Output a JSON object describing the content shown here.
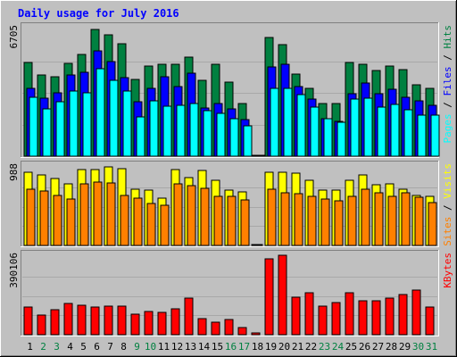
{
  "chart_data": {
    "type": "bar",
    "title": "Daily usage for July 2016",
    "categories": [
      "1",
      "2",
      "3",
      "4",
      "5",
      "6",
      "7",
      "8",
      "9",
      "10",
      "11",
      "12",
      "13",
      "14",
      "15",
      "16",
      "17",
      "18",
      "19",
      "20",
      "21",
      "22",
      "23",
      "24",
      "25",
      "26",
      "27",
      "28",
      "29",
      "30",
      "31"
    ],
    "weekend_days": [
      "2",
      "3",
      "9",
      "10",
      "16",
      "17",
      "23",
      "24",
      "30",
      "31"
    ],
    "colors": {
      "hits": "#008040",
      "files": "#0000ff",
      "pages": "#00ffff",
      "visits": "#ffff00",
      "sites": "#ff8000",
      "kbytes": "#ff0000",
      "title": "#0000ff",
      "weekday_label": "#000000",
      "weekend_label": "#008040"
    },
    "panels": [
      {
        "id": "usage",
        "axis_max_label": "6705",
        "ylim": [
          0,
          6705
        ],
        "legend": [
          {
            "name": "Pages",
            "color": "#00ffff"
          },
          {
            "name": "Files",
            "color": "#0000ff"
          },
          {
            "name": "Hits",
            "color": "#008040"
          }
        ],
        "series": [
          {
            "name": "Hits",
            "color": "#008040",
            "values": [
              4950,
              4290,
              4220,
              4920,
              5360,
              6700,
              6440,
              5960,
              4040,
              4750,
              4860,
              4840,
              5220,
              4020,
              4850,
              3920,
              2780,
              0,
              6270,
              5920,
              4330,
              3600,
              2770,
              2770,
              4960,
              4860,
              4540,
              4760,
              4580,
              3790,
              3610
            ]
          },
          {
            "name": "Files",
            "color": "#0000ff",
            "values": [
              3600,
              3060,
              3350,
              4310,
              4440,
              5550,
              5020,
              4160,
              2900,
              3590,
              4190,
              3690,
              4380,
              2560,
              2790,
              2510,
              1920,
              0,
              4730,
              4840,
              3690,
              3040,
              1980,
              1860,
              3300,
              3850,
              3310,
              3530,
              3120,
              2910,
              2680
            ]
          },
          {
            "name": "Pages",
            "color": "#00ffff",
            "values": [
              3110,
              2490,
              2870,
              3460,
              3350,
              4650,
              4030,
              3470,
              2080,
              2950,
              2640,
              2710,
              2780,
              2420,
              2290,
              1960,
              1600,
              0,
              3590,
              3610,
              3250,
              2580,
              2000,
              1790,
              3010,
              3060,
              2600,
              2760,
              2450,
              2180,
              2150
            ]
          }
        ]
      },
      {
        "id": "visits",
        "axis_max_label": "988",
        "ylim": [
          0,
          988
        ],
        "legend": [
          {
            "name": "Sites",
            "color": "#ff8000"
          },
          {
            "name": "Visits",
            "color": "#ffff00"
          }
        ],
        "series": [
          {
            "name": "Visits",
            "color": "#ffff00",
            "values": [
              930,
              900,
              850,
              780,
              960,
              970,
              1000,
              980,
              720,
              700,
              600,
              960,
              860,
              950,
              830,
              700,
              680,
              0,
              930,
              930,
              920,
              830,
              700,
              700,
              830,
              900,
              770,
              780,
              710,
              640,
              620
            ]
          },
          {
            "name": "Sites",
            "color": "#ff8000",
            "values": [
              710,
              690,
              640,
              590,
              780,
              810,
              800,
              640,
              600,
              530,
              510,
              780,
              760,
              730,
              630,
              620,
              580,
              0,
              710,
              670,
              660,
              620,
              590,
              570,
              620,
              720,
              670,
              620,
              670,
              610,
              540
            ]
          }
        ]
      },
      {
        "id": "kbytes",
        "axis_max_label": "390106",
        "ylim": [
          0,
          390106
        ],
        "legend": [
          {
            "name": "KBytes",
            "color": "#ff0000"
          }
        ],
        "series": [
          {
            "name": "KBytes",
            "color": "#ff0000",
            "values": [
              138000,
              100000,
              125000,
              155000,
              150000,
              140000,
              145000,
              145000,
              103000,
              115000,
              112000,
              128000,
              183000,
              80000,
              65000,
              75000,
              38000,
              7000,
              380000,
              401000,
              190000,
              210000,
              145000,
              160000,
              210000,
              170000,
              170000,
              185000,
              200000,
              226000,
              140000
            ]
          }
        ]
      }
    ]
  }
}
